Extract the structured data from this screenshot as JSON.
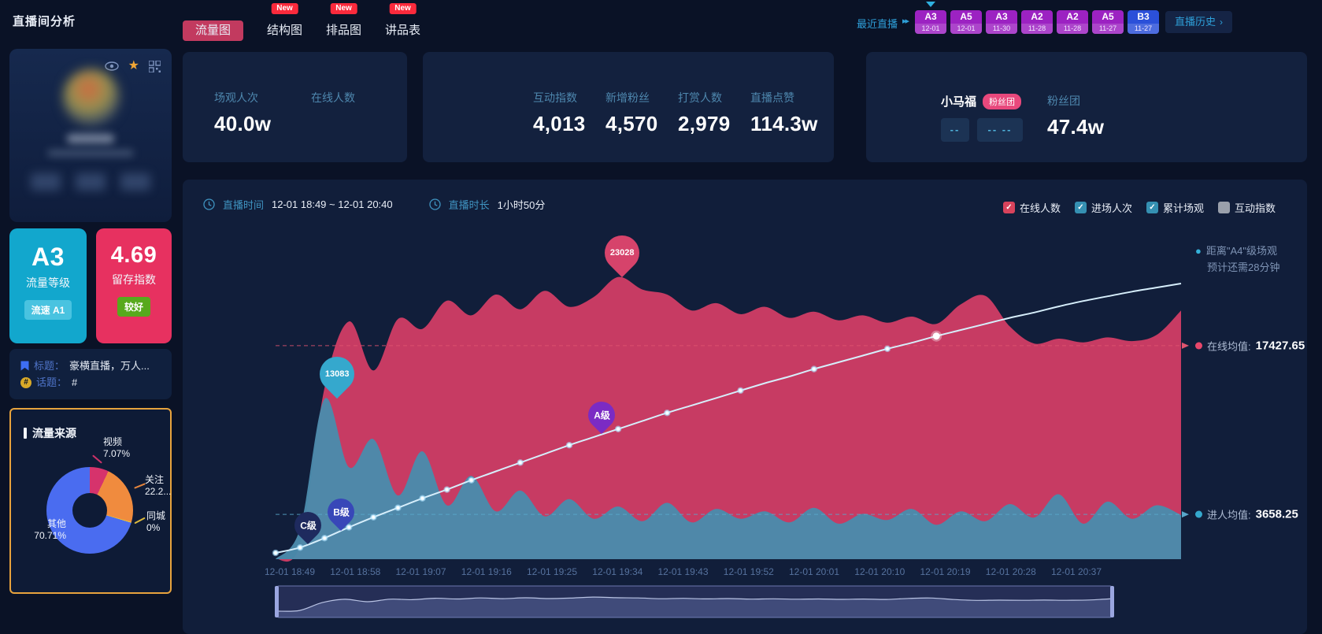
{
  "page": {
    "title": "直播间分析"
  },
  "topbar": {
    "new_badge": "New",
    "tabs": [
      {
        "label": "流量图",
        "is_new": false,
        "active": true
      },
      {
        "label": "结构图",
        "is_new": true
      },
      {
        "label": "排品图",
        "is_new": true
      },
      {
        "label": "讲品表",
        "is_new": true
      }
    ],
    "recent_label": "最近直播",
    "recent_arrows": "▸▸",
    "recent_sessions": [
      {
        "grade": "A3",
        "date": "12-01",
        "color": "#9c22c2",
        "selected": true
      },
      {
        "grade": "A5",
        "date": "12-01",
        "color": "#9c22c2"
      },
      {
        "grade": "A3",
        "date": "11-30",
        "color": "#9c22c2"
      },
      {
        "grade": "A2",
        "date": "11-28",
        "color": "#9c22c2"
      },
      {
        "grade": "A2",
        "date": "11-28",
        "color": "#9c22c2"
      },
      {
        "grade": "A5",
        "date": "11-27",
        "color": "#9c22c2"
      },
      {
        "grade": "B3",
        "date": "11-27",
        "color": "#2b50d9"
      }
    ],
    "history_label": "直播历史",
    "history_chevron": "›"
  },
  "profile": {
    "grade_card": {
      "value": "A3",
      "label": "流量等级",
      "badge": "流速 A1"
    },
    "retention_card": {
      "value": "4.69",
      "label": "留存指数",
      "badge": "较好"
    },
    "title_row": {
      "label": "标题：",
      "value": "豪横直播，万人..."
    },
    "topic_row": {
      "label": "话题：",
      "value": "#"
    }
  },
  "traffic_source": {
    "title": "流量来源",
    "chart_data": {
      "type": "pie",
      "slices": [
        {
          "label": "视频",
          "pct_label": "7.07%",
          "value": 7.07,
          "color": "#d6336c"
        },
        {
          "label": "关注",
          "pct_label": "22.2...",
          "value": 22.22,
          "color": "#f08b3e"
        },
        {
          "label": "同城",
          "pct_label": "0%",
          "value": 0.0,
          "color": "#e8c23d"
        },
        {
          "label": "其他",
          "pct_label": "70.71%",
          "value": 70.71,
          "color": "#4a6cf0"
        }
      ]
    }
  },
  "stats_card1": {
    "items": [
      {
        "label": "场观人次",
        "value": "40.0w"
      },
      {
        "label": "在线人数",
        "value": ""
      }
    ]
  },
  "stats_card2": {
    "items": [
      {
        "label": "互动指数",
        "value": "4,013"
      },
      {
        "label": "新增粉丝",
        "value": "4,570"
      },
      {
        "label": "打赏人数",
        "value": "2,979"
      },
      {
        "label": "直播点赞",
        "value": "114.3w"
      }
    ]
  },
  "fan_card": {
    "name": "小马福",
    "name_badge": "粉丝团",
    "dash1": "--",
    "dash2": "--  --",
    "stat_label": "粉丝团",
    "stat_value": "47.4w"
  },
  "main_chart": {
    "time_label": "直播时间",
    "time_value": "12-01 18:49 ~ 12-01 20:40",
    "duration_label": "直播时长",
    "duration_value": "1小时50分",
    "legend": [
      {
        "label": "在线人数",
        "checked": true,
        "color": "#d8435c"
      },
      {
        "label": "进场人次",
        "checked": true,
        "color": "#3590b2"
      },
      {
        "label": "累计场观",
        "checked": true,
        "color": "#3590b2"
      },
      {
        "label": "互动指数",
        "checked": false,
        "color": "#9aa0ab"
      }
    ],
    "annotation": {
      "line1": "距离\"A4\"级场观",
      "line2": "预计还需28分钟"
    },
    "online_avg": {
      "label": "在线均值:",
      "value": "17427.65"
    },
    "enter_avg": {
      "label": "进人均值:",
      "value": "3658.25"
    },
    "chart_data": {
      "type": "area",
      "x_ticks": [
        "12-01 18:49",
        "12-01 18:58",
        "12-01 19:07",
        "12-01 19:16",
        "12-01 19:25",
        "12-01 19:34",
        "12-01 19:43",
        "12-01 19:52",
        "12-01 20:01",
        "12-01 20:10",
        "12-01 20:19",
        "12-01 20:28",
        "12-01 20:37"
      ],
      "duration_min": 111,
      "sample_step_min": 3,
      "y_max": 27000,
      "online_mean": 17427.65,
      "enter_mean": 3658.25,
      "series": [
        {
          "name": "在线人数",
          "color": "#c73b63",
          "values": [
            0,
            1200,
            14000,
            19400,
            15400,
            19600,
            18800,
            21100,
            19900,
            21600,
            20400,
            21900,
            20600,
            21400,
            23028,
            22000,
            21600,
            20300,
            20900,
            20000,
            20600,
            19700,
            20200,
            19500,
            19900,
            19300,
            19800,
            19200,
            20800,
            21500,
            19000,
            17600,
            18000,
            17700,
            18100,
            17800,
            18300,
            20300
          ]
        },
        {
          "name": "进场人次",
          "color": "#4b8aab",
          "values": [
            0,
            2500,
            13083,
            7500,
            9800,
            5200,
            8800,
            4400,
            6800,
            3900,
            5600,
            3500,
            4900,
            3300,
            4300,
            3100,
            4600,
            3000,
            4100,
            3300,
            3900,
            3000,
            4200,
            2900,
            3700,
            3200,
            4100,
            2800,
            3900,
            3100,
            4500,
            3400,
            5300,
            2900,
            4700,
            3300,
            4400,
            3600
          ]
        },
        {
          "name": "累计场观",
          "color": "#d6eefb",
          "unit": "w",
          "final": 40.0,
          "values": [
            0,
            0.8,
            2.2,
            3.8,
            5.3,
            6.7,
            8.1,
            9.4,
            10.8,
            12.1,
            13.4,
            14.7,
            16.0,
            17.2,
            18.4,
            19.6,
            20.8,
            21.9,
            23.0,
            24.1,
            25.2,
            26.2,
            27.3,
            28.3,
            29.3,
            30.3,
            31.2,
            32.2,
            33.1,
            34.0,
            34.9,
            35.7,
            36.6,
            37.4,
            38.1,
            38.8,
            39.4,
            40.0
          ]
        }
      ],
      "markers": [
        {
          "label": "23028",
          "t": 42.5,
          "y_value": 23028,
          "color": "#d6436b",
          "size": 44,
          "font": 11
        },
        {
          "label": "13083",
          "t": 7.5,
          "y_value": 13083,
          "color": "#35a8cd",
          "size": 44,
          "font": 11
        },
        {
          "label": "A级",
          "t": 40,
          "on": "cumulative",
          "color": "#7b2bc4",
          "size": 34,
          "font": 12
        },
        {
          "label": "B级",
          "t": 8,
          "on": "cumulative",
          "color": "#3847b8",
          "size": 34,
          "font": 12
        },
        {
          "label": "C级",
          "t": 4,
          "on": "cumulative",
          "color": "#1e2a5e",
          "size": 34,
          "font": 12
        }
      ]
    }
  }
}
